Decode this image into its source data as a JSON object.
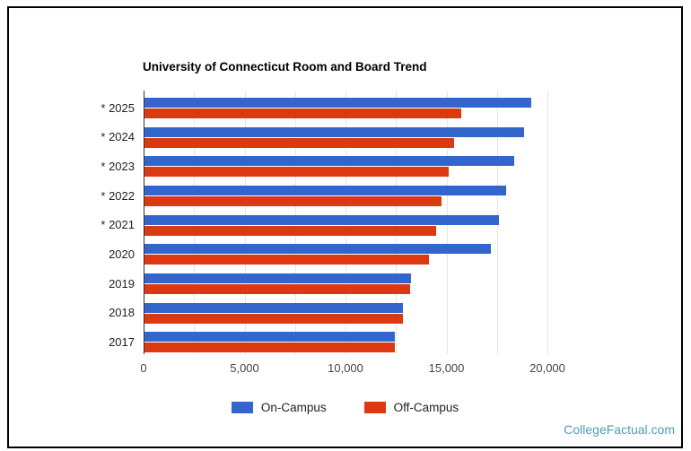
{
  "watermark": "CollegeFactual.com",
  "colors": {
    "on_campus": "#3366CC",
    "off_campus": "#DC3912",
    "watermark_teal": "#4ba0b2",
    "gridline": "#e6e6e6",
    "axis_line": "#333333"
  },
  "chart_data": {
    "type": "bar",
    "orientation": "horizontal",
    "title": "University of Connecticut Room and Board Trend",
    "categories": [
      "* 2025",
      "* 2024",
      "* 2023",
      "* 2022",
      "* 2021",
      "2020",
      "2019",
      "2018",
      "2017"
    ],
    "series": [
      {
        "name": "On-Campus",
        "color": "#3366CC",
        "values": [
          19150,
          18800,
          18300,
          17900,
          17550,
          17150,
          13200,
          12800,
          12400
        ]
      },
      {
        "name": "Off-Campus",
        "color": "#DC3912",
        "values": [
          15700,
          15350,
          15050,
          14700,
          14450,
          14100,
          13150,
          12800,
          12400
        ]
      }
    ],
    "xlim": [
      0,
      20000
    ],
    "x_tick_interval": 5000,
    "x_tick_labels": [
      "0",
      "5,000",
      "10,000",
      "15,000",
      "20,000"
    ],
    "gridline_interval": 2500,
    "grid": true,
    "legend_position": "bottom"
  }
}
